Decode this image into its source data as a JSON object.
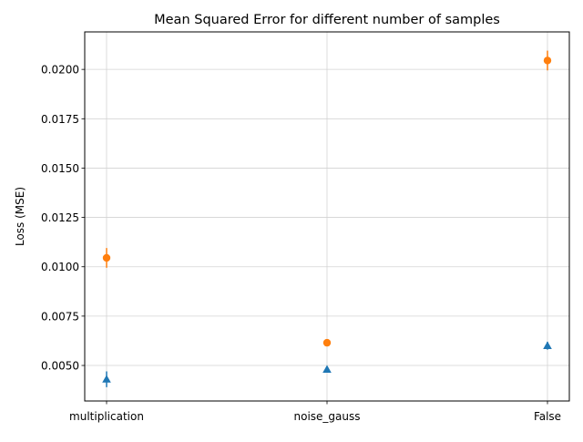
{
  "chart_data": {
    "type": "scatter",
    "title": "Mean Squared Error for different number of samples",
    "xlabel": "",
    "ylabel": "Loss (MSE)",
    "categories": [
      "multiplication",
      "noise_gauss",
      "False"
    ],
    "ylim": [
      0.0032,
      0.0219
    ],
    "yticks": [
      0.005,
      0.0075,
      0.01,
      0.0125,
      0.015,
      0.0175,
      0.02
    ],
    "ytick_labels": [
      "0.0050",
      "0.0075",
      "0.0100",
      "0.0125",
      "0.0150",
      "0.0175",
      "0.0200"
    ],
    "grid": true,
    "series": [
      {
        "marker": "triangle",
        "color": "#1f77b4",
        "values": [
          0.0043,
          0.0048,
          0.006
        ],
        "err": [
          0.0004,
          0.00015,
          0.0002
        ]
      },
      {
        "marker": "circle",
        "color": "#ff7f0e",
        "values": [
          0.01045,
          0.00615,
          0.02045
        ],
        "err": [
          0.0005,
          0.0001,
          0.0005
        ]
      }
    ]
  }
}
